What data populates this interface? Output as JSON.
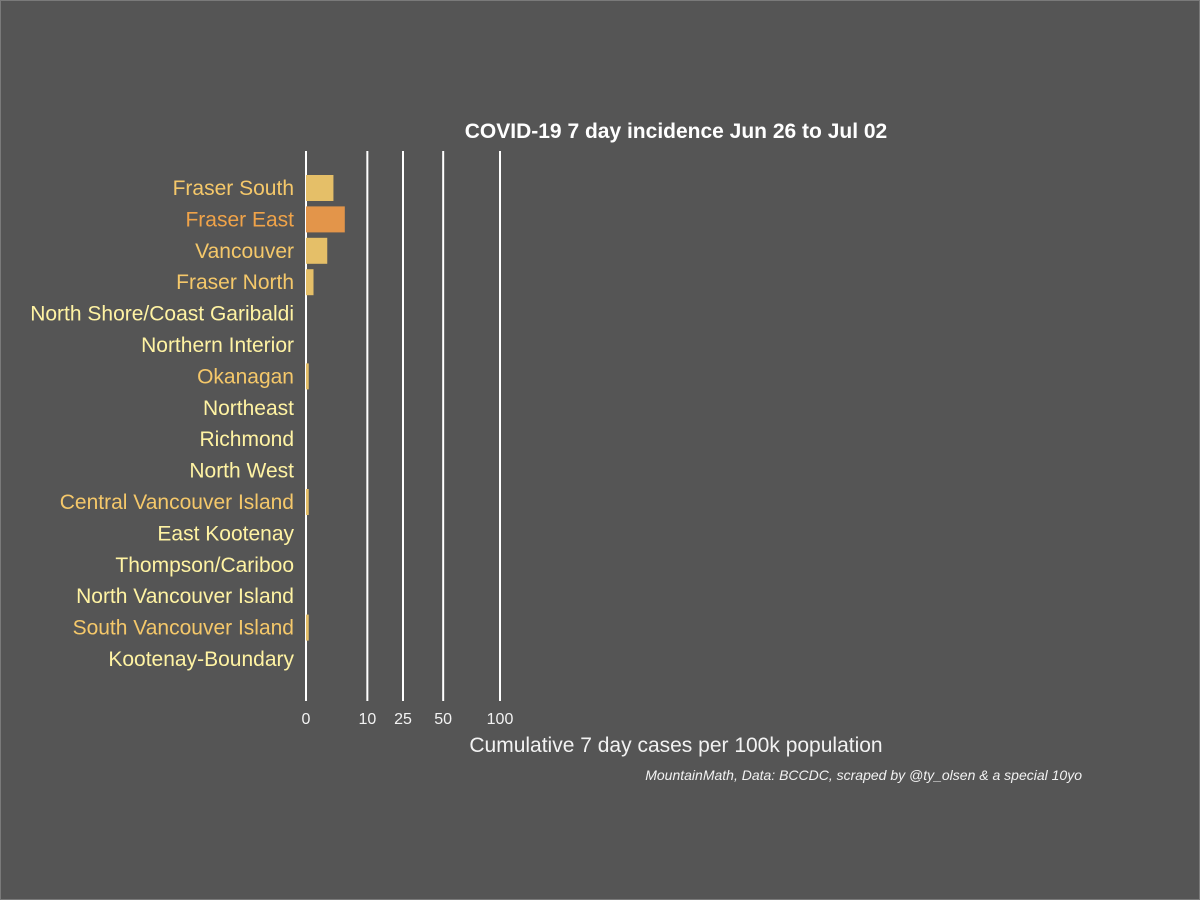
{
  "chart_data": {
    "type": "bar",
    "orientation": "horizontal",
    "title": "COVID-19 7 day incidence Jun 26 to Jul 02",
    "xlabel": "Cumulative 7 day cases per 100k population",
    "caption": "MountainMath, Data: BCCDC, scraped by @ty_olsen & a special 10yo",
    "x_scale": "sqrt",
    "xlim": [
      0,
      100
    ],
    "x_ticks": [
      0,
      10,
      25,
      50,
      100
    ],
    "x_tick_labels": [
      "0",
      "10",
      "25",
      "50",
      "100"
    ],
    "grid": "vertical lines at tick values",
    "legend": "none",
    "categories": [
      "Fraser South",
      "Fraser East",
      "Vancouver",
      "Fraser North",
      "North Shore/Coast Garibaldi",
      "Northern Interior",
      "Okanagan",
      "Northeast",
      "Richmond",
      "North West",
      "Central Vancouver Island",
      "East Kootenay",
      "Thompson/Cariboo",
      "North Vancouver Island",
      "South Vancouver Island",
      "Kootenay-Boundary"
    ],
    "values": [
      2.0,
      4.0,
      1.2,
      0.15,
      0,
      0,
      0.02,
      0,
      0,
      0,
      0.02,
      0,
      0,
      0,
      0.02,
      0
    ],
    "label_colors": [
      "#f5c86a",
      "#f0a349",
      "#f5c86a",
      "#f5c86a",
      "#fff3a3",
      "#fff3a3",
      "#f5c86a",
      "#fff3a3",
      "#fff3a3",
      "#fff3a3",
      "#f5c86a",
      "#fff3a3",
      "#fff3a3",
      "#fff3a3",
      "#f5c86a",
      "#fff3a3"
    ],
    "bar_colors": [
      "#e5bf68",
      "#e3954a",
      "#e5bf68",
      "#e5bf68",
      "#f2e4a0",
      "#f2e4a0",
      "#e5bf68",
      "#f2e4a0",
      "#f2e4a0",
      "#f2e4a0",
      "#e5bf68",
      "#f2e4a0",
      "#f2e4a0",
      "#f2e4a0",
      "#e5bf68",
      "#f2e4a0"
    ]
  }
}
